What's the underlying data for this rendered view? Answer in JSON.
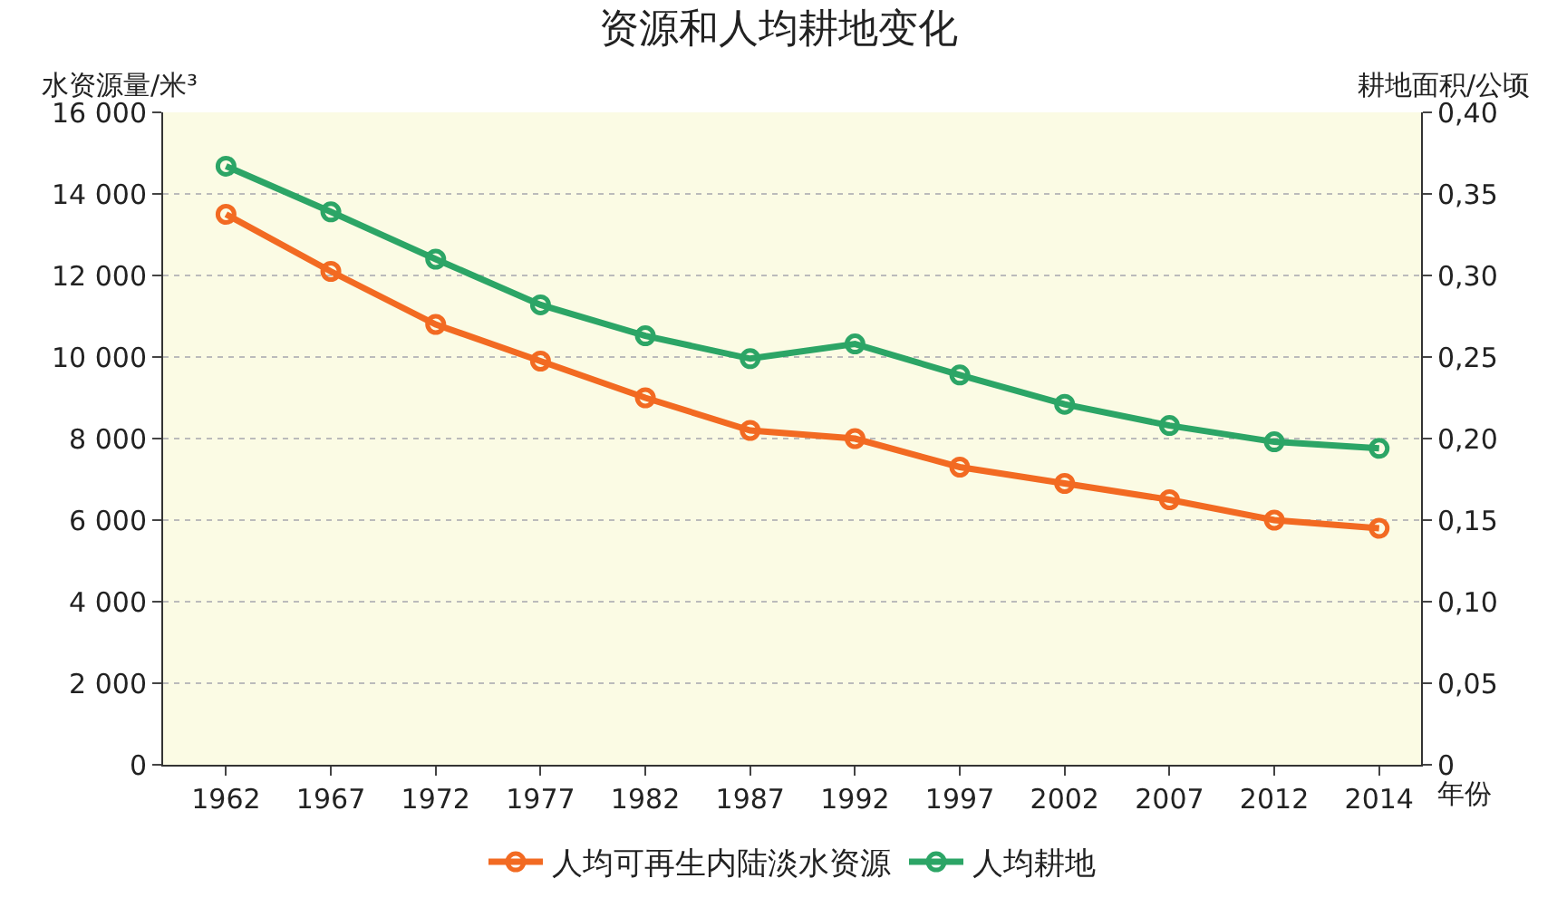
{
  "chart_data": {
    "type": "line",
    "title": "资源和人均耕地变化",
    "ylabel": "水资源量/米³",
    "y2label": "耕地面积/公顷",
    "xlabel": "年份",
    "categories": [
      "1962",
      "1967",
      "1972",
      "1977",
      "1982",
      "1987",
      "1992",
      "1997",
      "2002",
      "2007",
      "2012",
      "2014"
    ],
    "series": [
      {
        "name": "人均可再生内陆淡水资源",
        "color": "#f26a22",
        "values": [
          13500,
          12100,
          10800,
          9900,
          9000,
          8200,
          8000,
          7300,
          6900,
          6500,
          6000,
          5800
        ]
      },
      {
        "name": "人均耕地",
        "color": "#2ca566",
        "axis": "y2",
        "values": [
          0.367,
          0.339,
          0.31,
          0.282,
          0.263,
          0.249,
          0.258,
          0.239,
          0.221,
          0.208,
          0.198,
          0.194
        ]
      }
    ],
    "ylim": [
      0,
      16000
    ],
    "yticks": [
      0,
      {
        "value": 2000,
        "label": "2 000"
      },
      {
        "value": 4000,
        "label": "4 000"
      },
      {
        "value": 6000,
        "label": "6 000"
      },
      {
        "value": 8000,
        "label": "8 000"
      },
      {
        "value": 10000,
        "label": "10 000"
      },
      {
        "value": 12000,
        "label": "12 000"
      },
      {
        "value": 14000,
        "label": "14 000"
      },
      {
        "value": 16000,
        "label": "16 000"
      }
    ],
    "y2lim": [
      0,
      0.4
    ],
    "y2ticks": [
      0,
      {
        "value": 0.05,
        "label": "0,05"
      },
      {
        "value": 0.1,
        "label": "0,10"
      },
      {
        "value": 0.15,
        "label": "0,15"
      },
      {
        "value": 0.2,
        "label": "0,20"
      },
      {
        "value": 0.25,
        "label": "0,25"
      },
      {
        "value": 0.3,
        "label": "0,30"
      },
      {
        "value": 0.35,
        "label": "0,35"
      },
      {
        "value": 0.4,
        "label": "0,40"
      }
    ],
    "grid": "y",
    "legend": "bottom",
    "marker": "circle",
    "line_style": "solid"
  }
}
